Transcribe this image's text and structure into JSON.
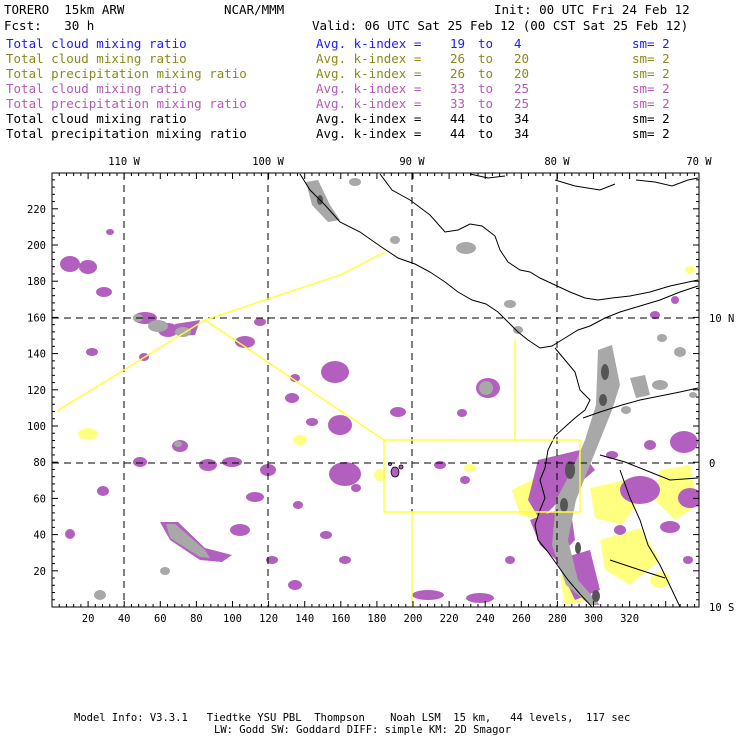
{
  "header": {
    "model": "TORERO  15km ARW",
    "center": "NCAR/MMM",
    "init": "Init: 00 UTC Fri 24 Feb 12",
    "fcst": "Fcst:   30 h",
    "valid": "Valid: 06 UTC Sat 25 Feb 12 (00 CST Sat 25 Feb 12)"
  },
  "legend": [
    {
      "field": "Total cloud mixing ratio",
      "avg": "Avg. k-index =",
      "from": "19",
      "to_word": "to",
      "to": "4",
      "sm": "sm= 2",
      "color": "#1a1aff"
    },
    {
      "field": "Total cloud mixing ratio",
      "avg": "Avg. k-index =",
      "from": "26",
      "to_word": "to",
      "to": "20",
      "sm": "sm= 2",
      "color": "#8a8a1a"
    },
    {
      "field": "Total precipitation mixing ratio",
      "avg": "Avg. k-index =",
      "from": "26",
      "to_word": "to",
      "to": "20",
      "sm": "sm= 2",
      "color": "#8a8a1a"
    },
    {
      "field": "Total cloud mixing ratio",
      "avg": "Avg. k-index =",
      "from": "33",
      "to_word": "to",
      "to": "25",
      "sm": "sm= 2",
      "color": "#b45ab4"
    },
    {
      "field": "Total precipitation mixing ratio",
      "avg": "Avg. k-index =",
      "from": "33",
      "to_word": "to",
      "to": "25",
      "sm": "sm= 2",
      "color": "#b45ab4"
    },
    {
      "field": "Total cloud mixing ratio",
      "avg": "Avg. k-index =",
      "from": "44",
      "to_word": "to",
      "to": "34",
      "sm": "sm= 2",
      "color": "#000000"
    },
    {
      "field": "Total precipitation mixing ratio",
      "avg": "Avg. k-index =",
      "from": "44",
      "to_word": "to",
      "to": "34",
      "sm": "sm= 2",
      "color": "#000000"
    }
  ],
  "map": {
    "lon_labels": [
      "110 W",
      "100 W",
      "90 W",
      "80 W",
      "70 W"
    ],
    "lat_labels": [
      "10 N",
      "0",
      "10 S"
    ],
    "x_ticks": [
      "20",
      "40",
      "60",
      "80",
      "100",
      "120",
      "140",
      "160",
      "180",
      "200",
      "220",
      "240",
      "260",
      "280",
      "300",
      "320"
    ],
    "y_ticks": [
      "20",
      "40",
      "60",
      "80",
      "100",
      "120",
      "140",
      "160",
      "180",
      "200",
      "220"
    ],
    "colors": {
      "purple": "#b35fc0",
      "yellow": "#ffff80",
      "gray": "#a8a8a8",
      "dark_gray": "#555555",
      "boundary": "#ffff33",
      "coast": "#000000"
    }
  },
  "footer": {
    "line1": "Model Info: V3.3.1   Tiedtke YSU PBL  Thompson    Noah LSM  15 km,   44 levels,  117 sec",
    "line2": "LW: Godd SW: Goddard DIFF: simple KM: 2D Smagor"
  }
}
